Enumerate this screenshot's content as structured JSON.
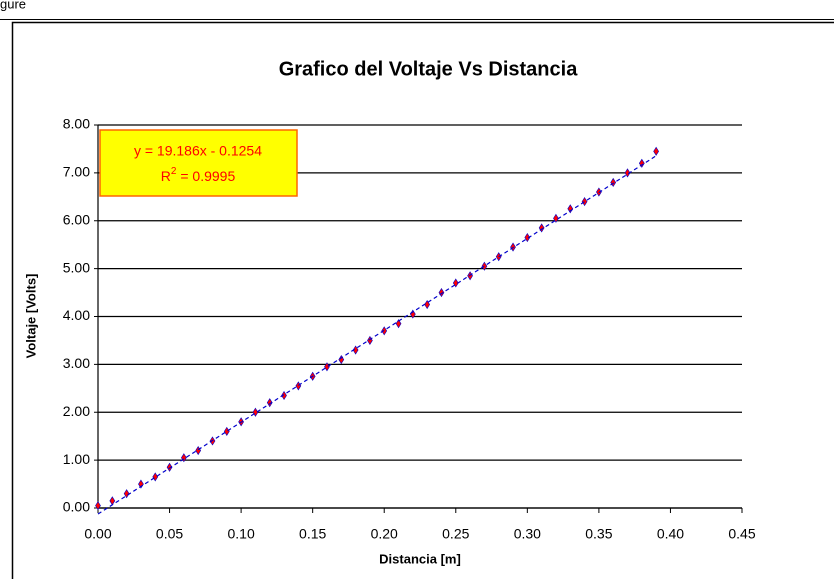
{
  "top_text": "gure",
  "chart_data": {
    "type": "scatter",
    "title": "Grafico del Voltaje Vs Distancia",
    "x_label": "Distancia [m]",
    "y_label": "Voltaje [Volts]",
    "annotation": {
      "equation": "y = 19.186x - 0.1254",
      "r2_parts": [
        "R",
        "2",
        " = 0.9995"
      ]
    },
    "trendline": {
      "slope": 19.186,
      "intercept": -0.1254,
      "color": "#0000cc"
    },
    "series": [
      {
        "name": "Voltaje",
        "color": "#ff0000",
        "x": [
          0.0,
          0.01,
          0.02,
          0.03,
          0.04,
          0.05,
          0.06,
          0.07,
          0.08,
          0.09,
          0.1,
          0.11,
          0.12,
          0.13,
          0.14,
          0.15,
          0.16,
          0.17,
          0.18,
          0.19,
          0.2,
          0.21,
          0.22,
          0.23,
          0.24,
          0.25,
          0.26,
          0.27,
          0.28,
          0.29,
          0.3,
          0.31,
          0.32,
          0.33,
          0.34,
          0.35,
          0.36,
          0.37,
          0.38,
          0.39
        ],
        "values": [
          0.05,
          0.15,
          0.3,
          0.5,
          0.65,
          0.85,
          1.05,
          1.2,
          1.4,
          1.6,
          1.8,
          2.0,
          2.2,
          2.35,
          2.55,
          2.75,
          2.95,
          3.1,
          3.3,
          3.5,
          3.7,
          3.85,
          4.05,
          4.25,
          4.5,
          4.7,
          4.85,
          5.05,
          5.25,
          5.45,
          5.65,
          5.85,
          6.05,
          6.25,
          6.4,
          6.6,
          6.8,
          7.0,
          7.2,
          7.45
        ]
      }
    ],
    "xlim": [
      0,
      0.45
    ],
    "ylim": [
      0,
      8
    ],
    "xticks": [
      {
        "value": 0,
        "label": "0.00"
      },
      {
        "value": 0.05,
        "label": "0.05"
      },
      {
        "value": 0.1,
        "label": "0.10"
      },
      {
        "value": 0.15,
        "label": "0.15"
      },
      {
        "value": 0.2,
        "label": "0.20"
      },
      {
        "value": 0.25,
        "label": "0.25"
      },
      {
        "value": 0.3,
        "label": "0.30"
      },
      {
        "value": 0.35,
        "label": "0.35"
      },
      {
        "value": 0.4,
        "label": "0.40"
      },
      {
        "value": 0.45,
        "label": "0.45"
      }
    ],
    "yticks": [
      {
        "value": 0,
        "label": "0.00"
      },
      {
        "value": 1,
        "label": "1.00"
      },
      {
        "value": 2,
        "label": "2.00"
      },
      {
        "value": 3,
        "label": "3.00"
      },
      {
        "value": 4,
        "label": "4.00"
      },
      {
        "value": 5,
        "label": "5.00"
      },
      {
        "value": 6,
        "label": "6.00"
      },
      {
        "value": 7,
        "label": "7.00"
      },
      {
        "value": 8,
        "label": "8.00"
      }
    ],
    "grid": true
  }
}
